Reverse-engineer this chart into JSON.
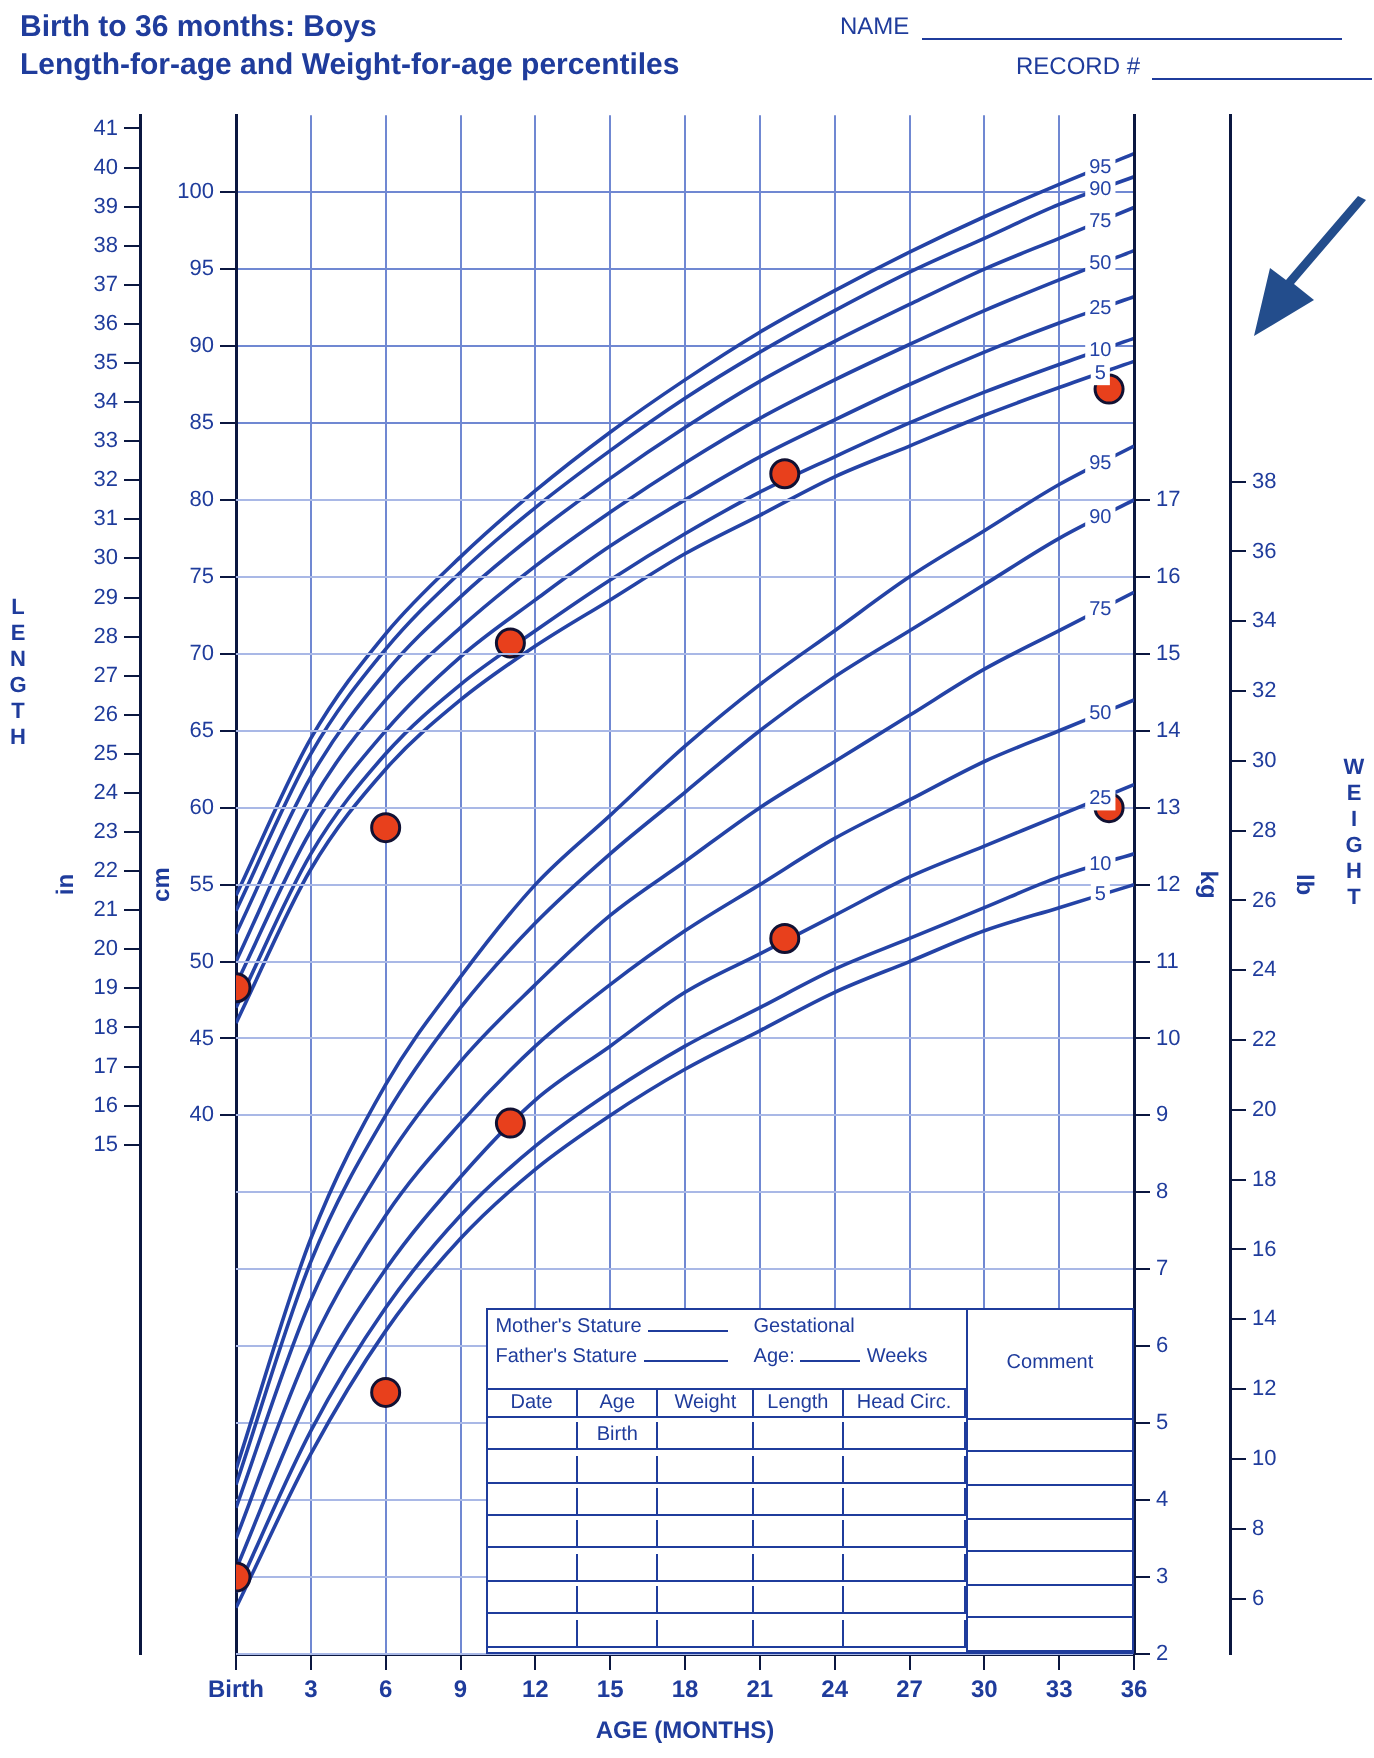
{
  "chart_data": [
    {
      "type": "line",
      "title": "Birth to 36 months: Boys",
      "subtitle": "Length-for-age and Weight-for-age percentiles",
      "xlabel": "AGE (MONTHS)",
      "ylabel": "cm",
      "y2label": "in",
      "x": [
        0,
        3,
        6,
        9,
        12,
        15,
        18,
        21,
        24,
        27,
        30,
        33,
        36
      ],
      "xlim": [
        0,
        36
      ],
      "xticks": [
        {
          "value": 0,
          "label": "Birth"
        },
        3,
        6,
        9,
        12,
        15,
        18,
        21,
        24,
        27,
        30,
        33,
        36
      ],
      "ylim": [
        5,
        105
      ],
      "yticks": [
        40,
        45,
        50,
        55,
        60,
        65,
        70,
        75,
        80,
        85,
        90,
        95,
        100
      ],
      "y2lim": [
        1.97,
        41.34
      ],
      "y2ticks": [
        15,
        16,
        17,
        18,
        19,
        20,
        21,
        22,
        23,
        24,
        25,
        26,
        27,
        28,
        29,
        30,
        31,
        32,
        33,
        34,
        35,
        36,
        37,
        38,
        39,
        40,
        41
      ],
      "grid": true,
      "legend": false,
      "marker": "none",
      "series": [
        {
          "name": "5",
          "color": "#2443a6",
          "values": [
            46,
            56,
            62.5,
            67,
            70.5,
            73.5,
            76.5,
            79,
            81.5,
            83.5,
            85.5,
            87.3,
            89
          ]
        },
        {
          "name": "10",
          "color": "#2443a6",
          "values": [
            47,
            57,
            63.5,
            68,
            71.5,
            74.8,
            77.8,
            80.5,
            82.8,
            85,
            87,
            88.8,
            90.5
          ]
        },
        {
          "name": "25",
          "color": "#2443a6",
          "values": [
            48.5,
            58.5,
            65,
            69.8,
            73.5,
            77,
            80,
            82.8,
            85.2,
            87.5,
            89.6,
            91.5,
            93.2
          ]
        },
        {
          "name": "50",
          "color": "#2443a6",
          "values": [
            50,
            60.3,
            67,
            71.7,
            75.7,
            79.2,
            82.4,
            85.3,
            87.8,
            90.1,
            92.3,
            94.3,
            96.2
          ]
        },
        {
          "name": "75",
          "color": "#2443a6",
          "values": [
            51.8,
            62,
            68.8,
            73.7,
            77.8,
            81.4,
            84.7,
            87.7,
            90.3,
            92.7,
            95,
            97,
            99
          ]
        },
        {
          "name": "90",
          "color": "#2443a6",
          "values": [
            53.3,
            63.5,
            70.3,
            75.3,
            79.5,
            83.2,
            86.6,
            89.6,
            92.3,
            94.8,
            97,
            99.2,
            101
          ]
        },
        {
          "name": "95",
          "color": "#2443a6",
          "values": [
            54.3,
            64.5,
            71.3,
            76.3,
            80.6,
            84.4,
            87.8,
            90.9,
            93.6,
            96.1,
            98.4,
            100.5,
            102.5
          ]
        },
        {
          "type": "scatter",
          "marker": "circle",
          "color": "#e8401c",
          "x": [
            0,
            6,
            11,
            22,
            35
          ],
          "values": [
            48.3,
            58.7,
            70.7,
            81.7,
            87.2
          ]
        }
      ],
      "annotations": [
        "NAME",
        "RECORD #",
        "LENGTH",
        "WEIGHT",
        "Mother's Stature",
        "Father's Stature",
        "Gestational",
        "Age:",
        "Weeks",
        "Comment",
        "Date",
        "Age",
        "Weight",
        "Length",
        "Head  Circ.",
        "Birth"
      ]
    },
    {
      "type": "line",
      "ylabel": "kg",
      "y2label": "lb",
      "x": [
        0,
        3,
        6,
        9,
        12,
        15,
        18,
        21,
        24,
        27,
        30,
        33,
        36
      ],
      "xlim": [
        0,
        36
      ],
      "ylim": [
        2,
        22
      ],
      "yticks": [
        2,
        3,
        4,
        5,
        6,
        7,
        8,
        9,
        10,
        11,
        12,
        13,
        14,
        15,
        16,
        17
      ],
      "y2lim": [
        4.41,
        48.5
      ],
      "y2ticks": [
        6,
        8,
        10,
        12,
        14,
        16,
        18,
        20,
        22,
        24,
        26,
        28,
        30,
        32,
        34,
        36,
        38
      ],
      "grid": "y",
      "legend": false,
      "marker": "none",
      "tick_labels": "y",
      "series": [
        {
          "name": "5",
          "color": "#2443a6",
          "values": [
            2.6,
            4.6,
            6.2,
            7.4,
            8.3,
            9.0,
            9.6,
            10.1,
            10.6,
            11.0,
            11.4,
            11.7,
            12.0
          ]
        },
        {
          "name": "10",
          "color": "#2443a6",
          "values": [
            2.8,
            4.9,
            6.5,
            7.7,
            8.6,
            9.3,
            9.9,
            10.4,
            10.9,
            11.3,
            11.7,
            12.1,
            12.4
          ]
        },
        {
          "name": "25",
          "color": "#2443a6",
          "values": [
            3.1,
            5.4,
            7.0,
            8.2,
            9.2,
            9.9,
            10.6,
            11.1,
            11.6,
            12.1,
            12.5,
            12.9,
            13.3
          ]
        },
        {
          "name": "50",
          "color": "#2443a6",
          "values": [
            3.5,
            6.0,
            7.7,
            8.9,
            9.9,
            10.7,
            11.4,
            12.0,
            12.6,
            13.1,
            13.6,
            14.0,
            14.4
          ]
        },
        {
          "name": "75",
          "color": "#2443a6",
          "values": [
            3.9,
            6.6,
            8.4,
            9.7,
            10.7,
            11.6,
            12.3,
            13.0,
            13.6,
            14.2,
            14.8,
            15.3,
            15.8
          ]
        },
        {
          "name": "90",
          "color": "#2443a6",
          "values": [
            4.2,
            7.1,
            9.0,
            10.4,
            11.5,
            12.4,
            13.2,
            14.0,
            14.7,
            15.3,
            15.9,
            16.5,
            17.0
          ]
        },
        {
          "name": "95",
          "color": "#2443a6",
          "values": [
            4.4,
            7.4,
            9.4,
            10.8,
            12.0,
            12.9,
            13.8,
            14.6,
            15.3,
            16.0,
            16.6,
            17.2,
            17.7
          ]
        },
        {
          "type": "scatter",
          "marker": "circle",
          "color": "#e8401c",
          "x": [
            0,
            6,
            11,
            22,
            35
          ],
          "values": [
            3.0,
            5.4,
            8.9,
            11.3,
            13.0
          ]
        }
      ]
    }
  ]
}
